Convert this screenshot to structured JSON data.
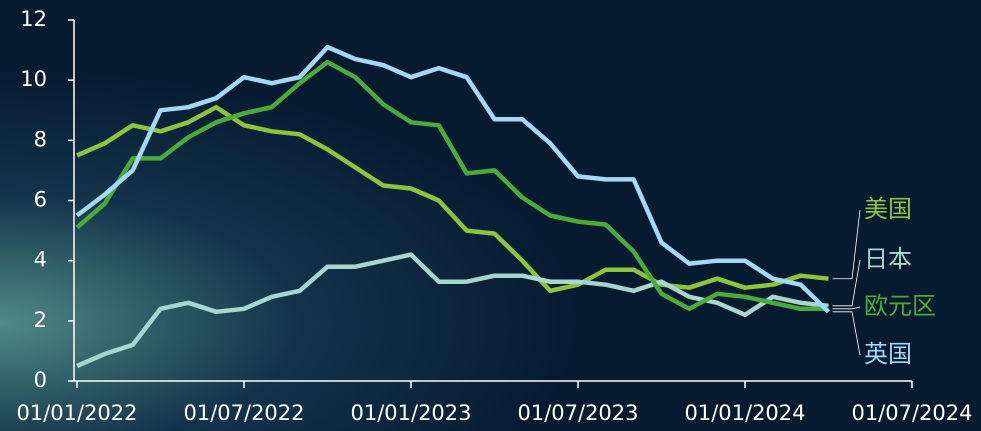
{
  "chart_data": {
    "type": "line",
    "x": [
      "01/01/2022",
      "01/02/2022",
      "01/03/2022",
      "01/04/2022",
      "01/05/2022",
      "01/06/2022",
      "01/07/2022",
      "01/08/2022",
      "01/09/2022",
      "01/10/2022",
      "01/11/2022",
      "01/12/2022",
      "01/01/2023",
      "01/02/2023",
      "01/03/2023",
      "01/04/2023",
      "01/05/2023",
      "01/06/2023",
      "01/07/2023",
      "01/08/2023",
      "01/09/2023",
      "01/10/2023",
      "01/11/2023",
      "01/12/2023",
      "01/01/2024",
      "01/02/2024",
      "01/03/2024",
      "01/04/2024"
    ],
    "series": [
      {
        "name": "美国",
        "color": "#8cc43c",
        "values": [
          7.5,
          7.9,
          8.5,
          8.3,
          8.6,
          9.1,
          8.5,
          8.3,
          8.2,
          7.7,
          7.1,
          6.5,
          6.4,
          6.0,
          5.0,
          4.9,
          4.0,
          3.0,
          3.2,
          3.7,
          3.7,
          3.2,
          3.1,
          3.4,
          3.1,
          3.2,
          3.5,
          3.4
        ]
      },
      {
        "name": "日本",
        "color": "#a6d6cf",
        "values": [
          0.5,
          0.9,
          1.2,
          2.4,
          2.6,
          2.3,
          2.4,
          2.8,
          3.0,
          3.8,
          3.8,
          4.0,
          4.2,
          3.3,
          3.3,
          3.5,
          3.5,
          3.3,
          3.3,
          3.2,
          3.0,
          3.3,
          2.8,
          2.6,
          2.2,
          2.8,
          2.6,
          2.5
        ]
      },
      {
        "name": "欧元区",
        "color": "#4bab3a",
        "values": [
          5.1,
          5.9,
          7.4,
          7.4,
          8.1,
          8.6,
          8.9,
          9.1,
          9.9,
          10.6,
          10.1,
          9.2,
          8.6,
          8.5,
          6.9,
          7.0,
          6.1,
          5.5,
          5.3,
          5.2,
          4.3,
          2.9,
          2.4,
          2.9,
          2.8,
          2.6,
          2.4,
          2.4
        ]
      },
      {
        "name": "英国",
        "color": "#a3d8f7",
        "values": [
          5.5,
          6.2,
          7.0,
          9.0,
          9.1,
          9.4,
          10.1,
          9.9,
          10.1,
          11.1,
          10.7,
          10.5,
          10.1,
          10.4,
          10.1,
          8.7,
          8.7,
          7.9,
          6.8,
          6.7,
          6.7,
          4.6,
          3.9,
          4.0,
          4.0,
          3.4,
          3.2,
          2.3
        ]
      }
    ],
    "xlim": [
      "01/01/2022",
      "01/07/2024"
    ],
    "xticks": [
      "01/01/2022",
      "01/07/2022",
      "01/01/2023",
      "01/07/2023",
      "01/01/2024",
      "01/07/2024"
    ],
    "ylim": [
      0,
      12
    ],
    "yticks": [
      0,
      2,
      4,
      6,
      8,
      10,
      12
    ]
  }
}
